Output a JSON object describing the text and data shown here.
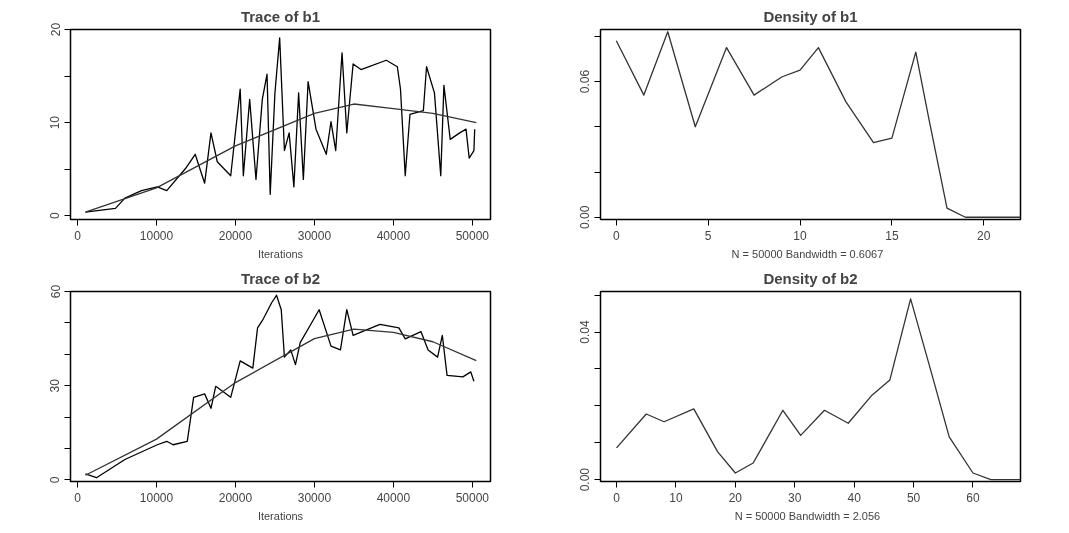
{
  "chart_data": [
    {
      "type": "line",
      "title": "Trace of b1",
      "xlabel": "Iterations",
      "xlim": [
        -890,
        52300
      ],
      "ylim": [
        -0.4,
        20
      ],
      "xticks": [
        0,
        10000,
        20000,
        30000,
        40000,
        50000
      ],
      "yticks": [
        0,
        {
          "value": 5,
          "label": null
        },
        10,
        {
          "value": 15,
          "label": null
        },
        20
      ],
      "series": [
        {
          "color": "#000000",
          "x": [
            1000,
            4800,
            6000,
            8100,
            10100,
            11300,
            13700,
            14900,
            16100,
            16900,
            17700,
            19400,
            20600,
            21000,
            21800,
            22600,
            23400,
            24000,
            24400,
            25000,
            25600,
            26200,
            26800,
            27400,
            28000,
            28600,
            29200,
            30200,
            31500,
            32100,
            32700,
            33500,
            34100,
            34900,
            35900,
            39100,
            40500,
            40900,
            41500,
            42100,
            43800,
            44200,
            45200,
            46000,
            46400,
            47200,
            48400,
            49200,
            49600,
            50200,
            50300
          ],
          "values": [
            0.4,
            0.8,
            1.9,
            2.7,
            3.1,
            2.7,
            5.1,
            6.6,
            3.5,
            8.9,
            5.8,
            4.3,
            13.6,
            4.3,
            12.5,
            3.9,
            12.5,
            15.2,
            2.3,
            13.2,
            19.1,
            7.0,
            8.9,
            3.1,
            13.2,
            3.9,
            14.4,
            9.3,
            6.6,
            10.1,
            7.0,
            17.5,
            8.9,
            16.3,
            15.7,
            16.7,
            16.0,
            13.6,
            4.3,
            10.9,
            11.3,
            16.0,
            13.2,
            4.3,
            14.0,
            8.2,
            8.9,
            9.3,
            6.2,
            7.0,
            9.3
          ]
        },
        {
          "color": "#333333",
          "x": [
            1000,
            10000,
            20000,
            30000,
            35000,
            40000,
            45000,
            50500
          ],
          "values": [
            0.4,
            3,
            7.5,
            11,
            12,
            11.5,
            11,
            10
          ]
        }
      ]
    },
    {
      "type": "line",
      "title": "Density of b1",
      "xlabel": "N = 50000   Bandwidth = 0.6067",
      "xlim": [
        -0.86,
        22
      ],
      "ylim": [
        -0.001,
        0.083
      ],
      "xticks": [
        0,
        5,
        10,
        15,
        20
      ],
      "yticks": [
        {
          "value": 0,
          "label": "0.00"
        },
        {
          "value": 0.02,
          "label": null
        },
        {
          "value": 0.04,
          "label": null
        },
        {
          "value": 0.06,
          "label": "0.06"
        },
        {
          "value": 0.08,
          "label": null
        }
      ],
      "series": [
        {
          "color": "#333333",
          "x": [
            0,
            1.5,
            2.8,
            4.3,
            6,
            7.5,
            9,
            10,
            11,
            12.5,
            14,
            15,
            16.3,
            17,
            18,
            19,
            22
          ],
          "values": [
            0.078,
            0.054,
            0.082,
            0.04,
            0.075,
            0.054,
            0.062,
            0.065,
            0.075,
            0.051,
            0.033,
            0.035,
            0.073,
            0.044,
            0.004,
            0,
            0
          ]
        }
      ]
    },
    {
      "type": "line",
      "title": "Trace of b2",
      "xlabel": "Iterations",
      "xlim": [
        -890,
        52300
      ],
      "ylim": [
        -0.5,
        60
      ],
      "xticks": [
        0,
        10000,
        20000,
        30000,
        40000,
        50000
      ],
      "yticks": [
        0,
        {
          "value": 10,
          "label": null
        },
        {
          "value": 20,
          "label": null
        },
        30,
        {
          "value": 40,
          "label": null
        },
        {
          "value": 50,
          "label": null
        },
        60
      ],
      "series": [
        {
          "color": "#000000",
          "x": [
            1000,
            2400,
            6000,
            10100,
            11300,
            12100,
            13900,
            14700,
            16100,
            16900,
            17500,
            19400,
            20600,
            22200,
            22800,
            23400,
            24600,
            25200,
            25800,
            26200,
            27000,
            27600,
            28200,
            29800,
            30600,
            32100,
            33300,
            34100,
            34900,
            38300,
            40700,
            41500,
            43500,
            44400,
            45600,
            46200,
            46800,
            48800,
            49800,
            50200
          ],
          "values": [
            1.9,
            0.7,
            6.5,
            11.2,
            12.3,
            11.2,
            12.3,
            26.3,
            27.4,
            22.8,
            29.8,
            26.3,
            37.9,
            35.6,
            48.4,
            50.7,
            56.5,
            58.8,
            54.2,
            39.1,
            41.4,
            36.7,
            43.7,
            50.7,
            54.2,
            42.6,
            41.4,
            54.2,
            46.0,
            49.5,
            48.4,
            44.9,
            47.2,
            41.4,
            39.1,
            46.0,
            33.3,
            32.8,
            34.4,
            31.4
          ]
        },
        {
          "color": "#333333",
          "x": [
            1000,
            10000,
            20000,
            30000,
            35000,
            40000,
            45000,
            50500
          ],
          "values": [
            1.5,
            13,
            31,
            45,
            48,
            47,
            44,
            38
          ]
        }
      ]
    },
    {
      "type": "line",
      "title": "Density of b2",
      "xlabel": "N = 50000   Bandwidth = 2.056",
      "xlim": [
        -2.7,
        68
      ],
      "ylim": [
        -0.0005,
        0.051
      ],
      "xticks": [
        0,
        10,
        20,
        30,
        40,
        50,
        60
      ],
      "yticks": [
        {
          "value": 0,
          "label": "0.00"
        },
        {
          "value": 0.01,
          "label": null
        },
        {
          "value": 0.02,
          "label": null
        },
        {
          "value": 0.03,
          "label": null
        },
        {
          "value": 0.04,
          "label": "0.04"
        },
        {
          "value": 0.05,
          "label": null
        }
      ],
      "series": [
        {
          "color": "#333333",
          "x": [
            0,
            5,
            8,
            13,
            17,
            20,
            23,
            28,
            31,
            35,
            39,
            43,
            46,
            49.5,
            53,
            56,
            60,
            63,
            68
          ],
          "values": [
            0.0086,
            0.0178,
            0.0157,
            0.0192,
            0.0076,
            0.0018,
            0.0045,
            0.0188,
            0.012,
            0.0188,
            0.0153,
            0.0229,
            0.027,
            0.049,
            0.029,
            0.0116,
            0.0018,
            0,
            0
          ]
        }
      ]
    }
  ]
}
